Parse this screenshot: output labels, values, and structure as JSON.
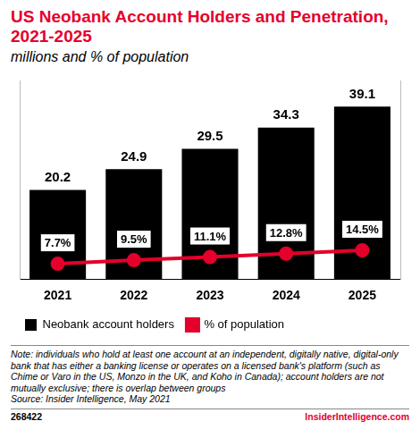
{
  "chart_data": {
    "type": "bar",
    "title": "US Neobank Account Holders and Penetration, 2021-2025",
    "subtitle": "millions and % of population",
    "categories": [
      "2021",
      "2022",
      "2023",
      "2024",
      "2025"
    ],
    "series": [
      {
        "name": "Neobank account holders",
        "type": "bar",
        "color": "#000000",
        "values": [
          20.2,
          24.9,
          29.5,
          34.3,
          39.1
        ]
      },
      {
        "name": "% of population",
        "type": "line",
        "color": "#e4002b",
        "axis": "y2",
        "marker": "circle",
        "values": [
          7.7,
          9.5,
          11.1,
          12.8,
          14.5
        ],
        "value_labels": [
          "7.7%",
          "9.5%",
          "11.1%",
          "12.8%",
          "14.5%"
        ]
      }
    ],
    "ylim": [
      0,
      45
    ],
    "y2lim": [
      0,
      100
    ],
    "grid": false,
    "legend": "bottom",
    "data_labels": true,
    "tick_labels": "x",
    "note": "Note: individuals who hold at least one account at an independent, digitally native, digital-only bank that has either a banking license or operates on a licensed bank's platform (such as Chime or Varo in the US, Monzo in the UK, and Koho in Canada); account holders are not mutually exclusive; there is overlap between groups",
    "source": "Source: Insider Intelligence, May 2021",
    "chart_id": "268422",
    "brand": "InsiderIntelligence.com"
  }
}
